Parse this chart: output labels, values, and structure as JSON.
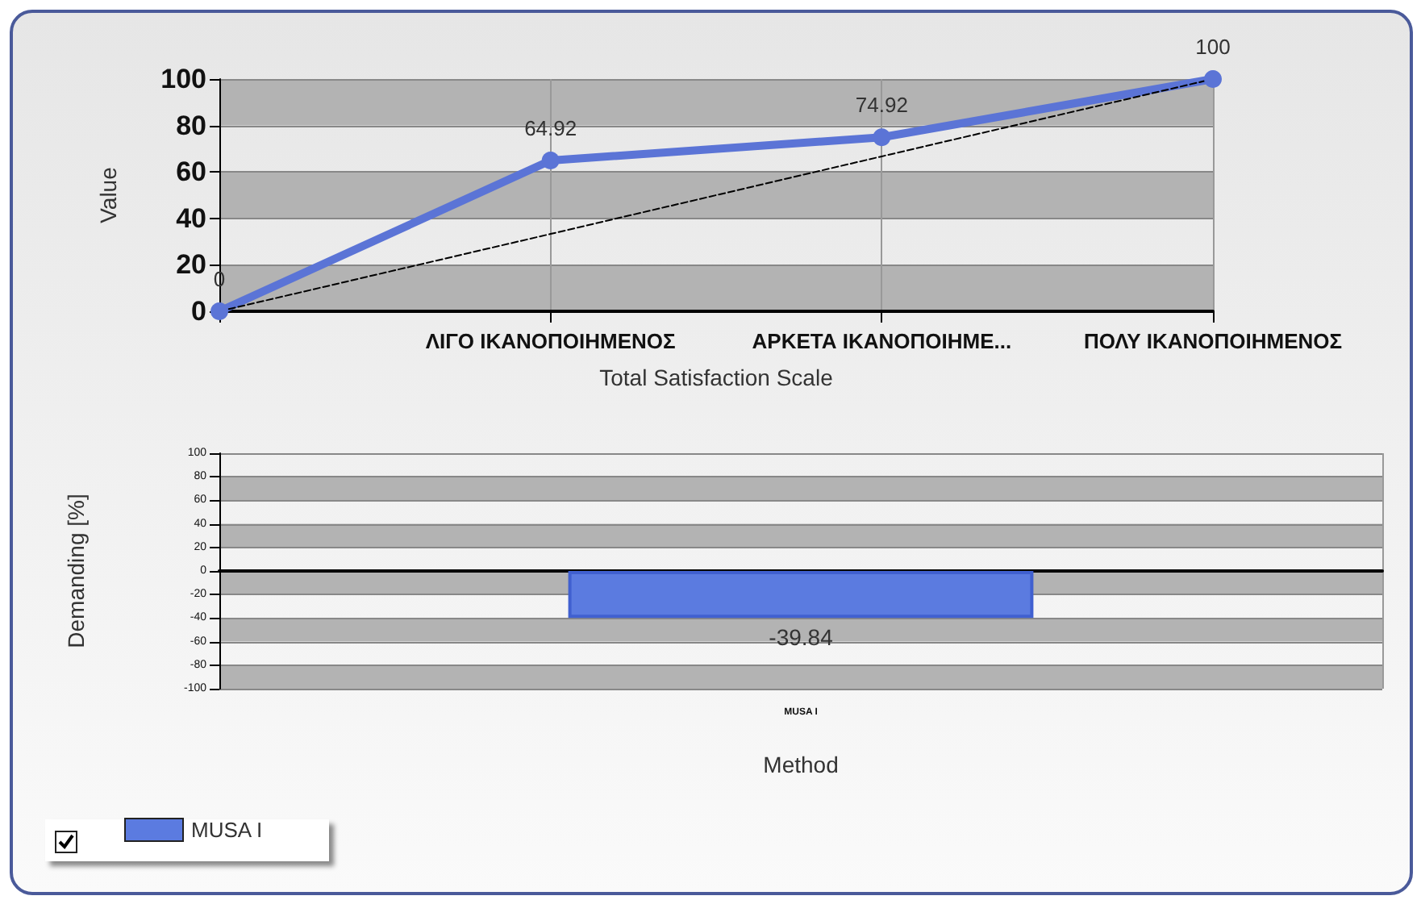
{
  "chart_data": [
    {
      "type": "line",
      "xlabel": "Total Satisfaction Scale",
      "ylabel": "Value",
      "categories": [
        null,
        "ΛΙΓΟ ΙΚΑΝΟΠΟΙΗΜΕΝΟΣ",
        "ΑΡΚΕΤΑ ΙΚΑΝΟΠΟΙΗΜΕ...",
        "ΠΟΛΥ ΙΚΑΝΟΠΟΙΗΜΕΝΟΣ"
      ],
      "series": [
        {
          "color": "#5b74d6",
          "values": [
            0,
            64.92,
            74.92,
            100
          ],
          "marker": "circle",
          "data_labels": true
        },
        {
          "color": "#000000",
          "values": [
            0,
            33.3,
            66.7,
            100
          ],
          "marker": "none",
          "line_style": "dashed"
        }
      ],
      "ylim": [
        0,
        100
      ],
      "yticks": [
        0,
        20,
        40,
        60,
        80,
        100
      ],
      "grid": true,
      "legend": false
    },
    {
      "type": "bar",
      "xlabel": "Method",
      "ylabel": "Demanding [%]",
      "categories": [
        "MUSA I"
      ],
      "series": [
        {
          "name": "MUSA I",
          "color": "#5b7be0",
          "values": [
            -39.84
          ]
        }
      ],
      "data_labels": true,
      "ylim": [
        -100,
        100
      ],
      "yticks": [
        -100,
        -80,
        -60,
        -40,
        -20,
        0,
        20,
        40,
        60,
        80,
        100
      ],
      "grid": true,
      "legend": "bottom left"
    }
  ]
}
